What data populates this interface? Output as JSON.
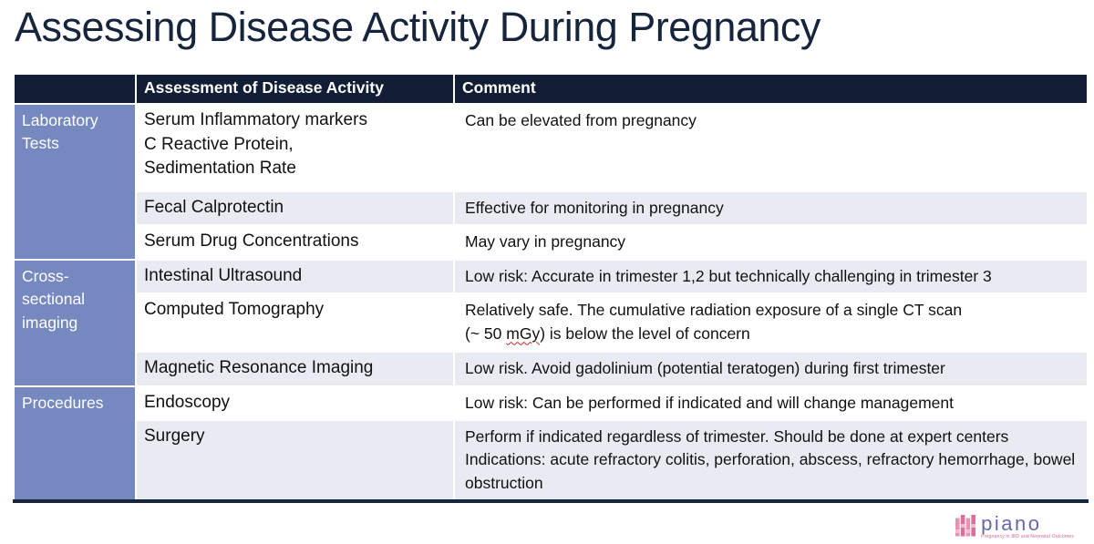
{
  "title": "Assessing Disease Activity During Pregnancy",
  "colors": {
    "header_bg": "#111E35",
    "category_bg": "#7588BF",
    "row_alt_bg": "#E9EBF2",
    "row_bg": "#FFFFFF",
    "title_color": "#16243C",
    "bottom_border": "#18253E",
    "logo_pink": "#D96F9D",
    "logo_purple": "#6468AE",
    "squiggle_red": "#CC2A1E"
  },
  "table": {
    "headers": [
      "",
      "Assessment of Disease Activity",
      "Comment"
    ],
    "groups": [
      {
        "category": "Laboratory Tests",
        "rows": [
          {
            "assessment": "Serum Inflammatory markers\nC Reactive Protein,\nSedimentation Rate",
            "comment": "Can be elevated from pregnancy"
          },
          {
            "assessment": "Fecal Calprotectin",
            "comment": "Effective for monitoring in pregnancy"
          },
          {
            "assessment": "Serum Drug Concentrations",
            "comment": "May vary in pregnancy"
          }
        ]
      },
      {
        "category": "Cross-sectional imaging",
        "rows": [
          {
            "assessment": "Intestinal Ultrasound",
            "comment": "Low risk: Accurate in trimester 1,2 but technically challenging in trimester 3"
          },
          {
            "assessment": "Computed Tomography",
            "comment": "Relatively safe. The cumulative radiation exposure of a single CT scan\n(~ 50 mGy) is below the level of concern"
          },
          {
            "assessment": "Magnetic Resonance Imaging",
            "comment": "Low risk. Avoid gadolinium (potential teratogen) during first trimester"
          }
        ]
      },
      {
        "category": "Procedures",
        "rows": [
          {
            "assessment": "Endoscopy",
            "comment": "Low risk: Can be performed if indicated and will change management"
          },
          {
            "assessment": "Surgery",
            "comment": "Perform if indicated regardless of trimester. Should be done at expert centers\nIndications: acute refractory colitis, perforation, abscess, refractory hemorrhage, bowel obstruction"
          }
        ]
      }
    ]
  },
  "misc": {
    "squiggle_word": "mGy"
  },
  "logo": {
    "name": "piano",
    "tagline": "Pregnancy in IBD and Neonatal Outcomes"
  }
}
